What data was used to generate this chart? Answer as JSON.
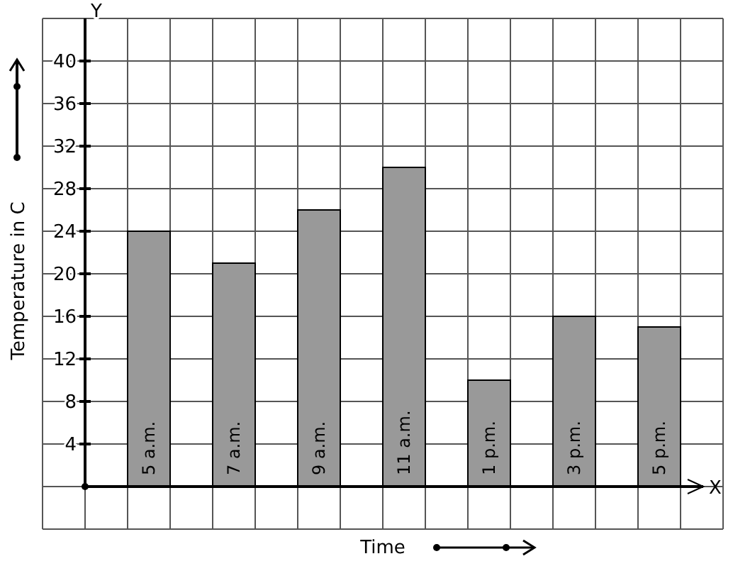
{
  "chart_data": {
    "type": "bar",
    "xlabel": "Time",
    "ylabel": "Temperature in C",
    "categories": [
      "5 a.m.",
      "7 a.m.",
      "9 a.m.",
      "11 a.m.",
      "1 p.m.",
      "3 p.m.",
      "5 p.m."
    ],
    "values": [
      24,
      21,
      26,
      30,
      10,
      16,
      15
    ],
    "color": "#999999",
    "ylim": [
      0,
      44
    ],
    "yticks": [
      4,
      8,
      12,
      16,
      20,
      24,
      28,
      32,
      36,
      40
    ],
    "grid": true,
    "annotations": [
      "X",
      "Y"
    ]
  }
}
